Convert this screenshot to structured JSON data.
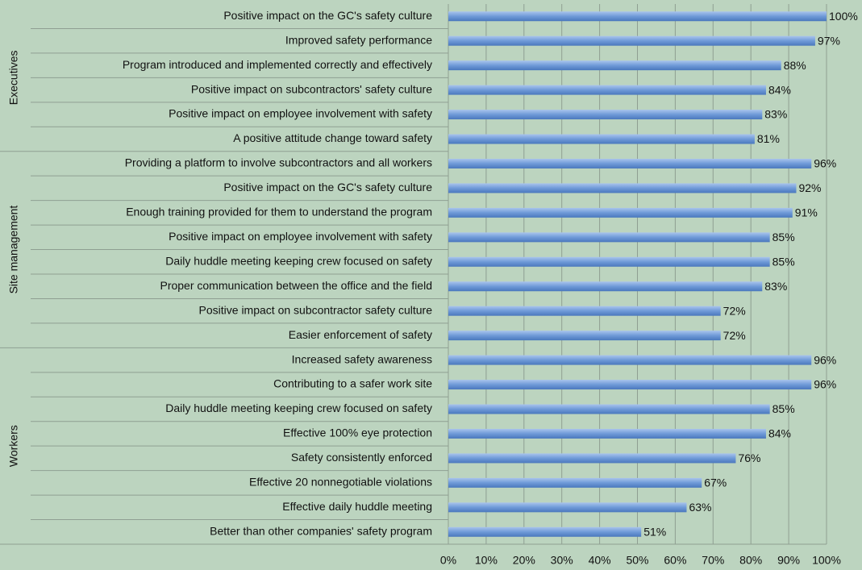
{
  "chart_data": {
    "type": "bar",
    "orientation": "horizontal",
    "color": "#5b8bd0",
    "xlim": [
      0,
      100
    ],
    "xticks": [
      {
        "value": 0,
        "label": "0%"
      },
      {
        "value": 10,
        "label": "10%"
      },
      {
        "value": 20,
        "label": "20%"
      },
      {
        "value": 30,
        "label": "30%"
      },
      {
        "value": 40,
        "label": "40%"
      },
      {
        "value": 50,
        "label": "50%"
      },
      {
        "value": 60,
        "label": "60%"
      },
      {
        "value": 70,
        "label": "70%"
      },
      {
        "value": 80,
        "label": "80%"
      },
      {
        "value": 90,
        "label": "90%"
      },
      {
        "value": 100,
        "label": "100%"
      }
    ],
    "grid": true,
    "groups": [
      {
        "label": "Executives",
        "categories": [
          "Positive impact on the GC's safety culture",
          "Improved safety performance",
          "Program introduced and implemented correctly and effectively",
          "Positive impact on subcontractors' safety culture",
          "Positive impact on employee involvement with safety",
          "A positive attitude change toward safety"
        ],
        "values": [
          100,
          97,
          88,
          84,
          83,
          81
        ],
        "value_labels": [
          "100%",
          "97%",
          "88%",
          "84%",
          "83%",
          "81%"
        ]
      },
      {
        "label": "Site management",
        "categories": [
          "Providing a platform to involve subcontractors and all workers",
          "Positive impact on the GC's safety culture",
          "Enough training provided for them to understand the program",
          "Positive impact on employee involvement with safety",
          "Daily huddle meeting keeping crew focused on safety",
          "Proper communication between the office and the field",
          "Positive impact on subcontractor safety culture",
          "Easier enforcement of safety"
        ],
        "values": [
          96,
          92,
          91,
          85,
          85,
          83,
          72,
          72
        ],
        "value_labels": [
          "96%",
          "92%",
          "91%",
          "85%",
          "85%",
          "83%",
          "72%",
          "72%"
        ]
      },
      {
        "label": "Workers",
        "categories": [
          "Increased safety awareness",
          "Contributing to a safer work site",
          "Daily huddle meeting keeping crew focused on safety",
          "Effective 100% eye protection",
          "Safety consistently enforced",
          "Effective 20 nonnegotiable violations",
          "Effective daily huddle meeting",
          "Better than other companies' safety program"
        ],
        "values": [
          96,
          96,
          85,
          84,
          76,
          67,
          63,
          51
        ],
        "value_labels": [
          "96%",
          "96%",
          "85%",
          "84%",
          "76%",
          "67%",
          "63%",
          "51%"
        ]
      }
    ]
  }
}
